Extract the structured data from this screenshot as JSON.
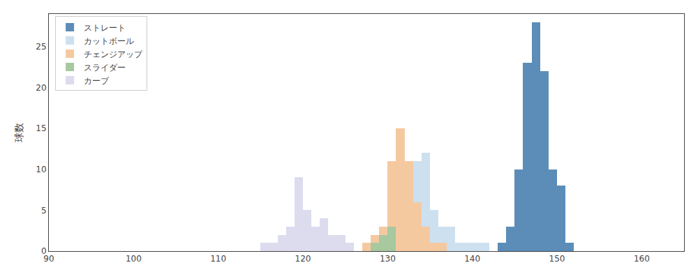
{
  "chart_data": {
    "type": "histogram",
    "ylabel": "球数",
    "xlim": [
      90,
      165
    ],
    "ylim": [
      0,
      29
    ],
    "xticks": [
      90,
      100,
      110,
      120,
      130,
      140,
      150,
      160
    ],
    "yticks": [
      0,
      5,
      10,
      15,
      20,
      25
    ],
    "grid": false,
    "legend": "upper left",
    "bins": [
      90,
      91,
      92,
      93,
      94,
      95,
      96,
      97,
      98,
      99,
      100,
      101,
      102,
      103,
      104,
      105,
      106,
      107,
      108,
      109,
      110,
      111,
      112,
      113,
      114,
      115,
      116,
      117,
      118,
      119,
      120,
      121,
      122,
      123,
      124,
      125,
      126,
      127,
      128,
      129,
      130,
      131,
      132,
      133,
      134,
      135,
      136,
      137,
      138,
      139,
      140,
      141,
      142,
      143,
      144,
      145,
      146,
      147,
      148,
      149,
      150,
      151,
      152,
      153,
      154,
      155,
      156,
      157,
      158,
      159,
      160,
      161,
      162,
      163,
      164,
      165,
      166
    ],
    "series": [
      {
        "name": "ストレート",
        "color": "#5b8db8",
        "values": [
          0,
          0,
          0,
          0,
          0,
          0,
          0,
          0,
          0,
          0,
          0,
          0,
          0,
          0,
          0,
          0,
          0,
          0,
          0,
          0,
          0,
          0,
          0,
          0,
          0,
          0,
          0,
          0,
          0,
          0,
          0,
          0,
          0,
          0,
          0,
          0,
          0,
          0,
          0,
          0,
          0,
          0,
          0,
          0,
          0,
          0,
          0,
          0,
          0,
          0,
          0,
          0,
          0,
          1,
          3,
          10,
          23,
          28,
          22,
          10,
          8,
          1,
          0,
          0,
          0,
          0,
          0,
          0,
          0,
          0,
          0,
          0,
          0,
          0,
          0,
          0
        ]
      },
      {
        "name": "カットボール",
        "color": "#cde0f0",
        "values": [
          0,
          0,
          0,
          0,
          0,
          0,
          0,
          0,
          0,
          0,
          0,
          0,
          0,
          0,
          0,
          0,
          0,
          0,
          0,
          0,
          0,
          0,
          0,
          0,
          0,
          0,
          0,
          0,
          0,
          0,
          0,
          0,
          0,
          0,
          0,
          0,
          0,
          0,
          1,
          1,
          2,
          4,
          6,
          11,
          12,
          5,
          3,
          3,
          1,
          1,
          1,
          1,
          0,
          0,
          0,
          0,
          0,
          0,
          0,
          0,
          0,
          0,
          0,
          0,
          0,
          0,
          0,
          0,
          0,
          0,
          0,
          0,
          0,
          0,
          0,
          0
        ]
      },
      {
        "name": "チェンジアップ",
        "color": "#f5c9a0",
        "values": [
          0,
          0,
          0,
          0,
          0,
          0,
          0,
          0,
          0,
          0,
          0,
          0,
          0,
          0,
          0,
          0,
          0,
          0,
          0,
          0,
          0,
          0,
          0,
          0,
          0,
          0,
          0,
          0,
          0,
          0,
          0,
          0,
          0,
          0,
          0,
          0,
          0,
          1,
          2,
          3,
          11,
          15,
          11,
          6,
          3,
          1,
          1,
          0,
          0,
          0,
          0,
          0,
          0,
          0,
          0,
          0,
          0,
          0,
          0,
          0,
          0,
          0,
          0,
          0,
          0,
          0,
          0,
          0,
          0,
          0,
          0,
          0,
          0,
          0,
          0,
          0
        ]
      },
      {
        "name": "スライダー",
        "color": "#a8c8a0",
        "values": [
          0,
          0,
          0,
          0,
          0,
          0,
          0,
          0,
          0,
          0,
          0,
          0,
          0,
          0,
          0,
          0,
          0,
          0,
          0,
          0,
          0,
          0,
          0,
          0,
          0,
          0,
          0,
          0,
          0,
          0,
          0,
          0,
          0,
          0,
          0,
          0,
          0,
          0,
          1,
          2,
          3,
          0,
          0,
          0,
          0,
          0,
          0,
          0,
          0,
          0,
          0,
          0,
          0,
          0,
          0,
          0,
          0,
          0,
          0,
          0,
          0,
          0,
          0,
          0,
          0,
          0,
          0,
          0,
          0,
          0,
          0,
          0,
          0,
          0,
          0,
          0
        ]
      },
      {
        "name": "カーブ",
        "color": "#dcdcee",
        "values": [
          0,
          0,
          0,
          0,
          0,
          0,
          0,
          0,
          0,
          0,
          0,
          0,
          0,
          0,
          0,
          0,
          0,
          0,
          0,
          0,
          0,
          0,
          0,
          0,
          0,
          1,
          1,
          2,
          3,
          9,
          5,
          3,
          4,
          2,
          2,
          1,
          0,
          0,
          0,
          0,
          0,
          0,
          0,
          0,
          0,
          0,
          0,
          0,
          0,
          0,
          0,
          0,
          0,
          0,
          0,
          0,
          0,
          0,
          0,
          0,
          0,
          0,
          0,
          0,
          0,
          0,
          0,
          0,
          0,
          0,
          0,
          0,
          0,
          0,
          0,
          0
        ]
      }
    ]
  }
}
